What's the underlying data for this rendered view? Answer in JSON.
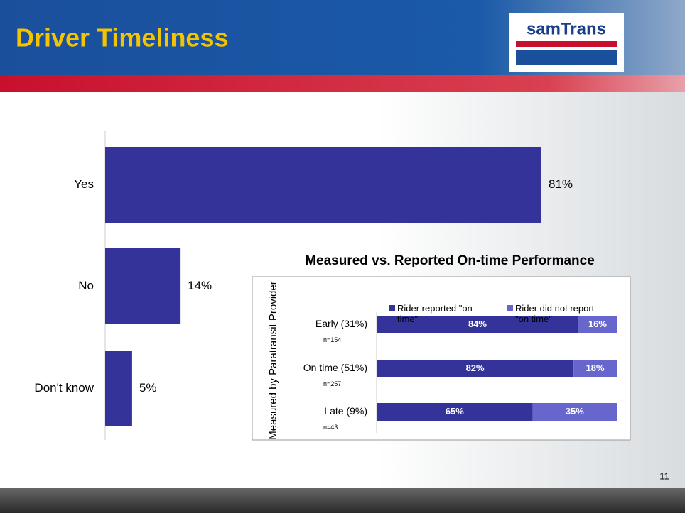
{
  "header": {
    "title": "Driver Timeliness",
    "logo": "samTrans"
  },
  "footer": {
    "page_number": 11
  },
  "chart_data": [
    {
      "type": "hbar",
      "categories": [
        "Yes",
        "No",
        "Don't know"
      ],
      "values": [
        81,
        14,
        5
      ],
      "value_labels": [
        "81%",
        "14%",
        "5%"
      ],
      "color": "#333399"
    },
    {
      "type": "stacked_hbar",
      "title": "Measured vs. Reported On-time Performance",
      "y_label": "Measured by Paratransit Provider",
      "categories": [
        "Early (31%)",
        "On time (51%)",
        "Late (9%)"
      ],
      "sample_sizes": [
        "n=154",
        "n=257",
        "n=43"
      ],
      "series": [
        {
          "name": "Rider reported \"on time\"",
          "color": "#333399",
          "values": [
            84,
            82,
            65
          ],
          "value_labels": [
            "84%",
            "82%",
            "65%"
          ]
        },
        {
          "name": "Rider did not report \"on time\"",
          "color": "#6666cc",
          "values": [
            16,
            18,
            35
          ],
          "value_labels": [
            "16%",
            "18%",
            "35%"
          ]
        }
      ]
    }
  ]
}
